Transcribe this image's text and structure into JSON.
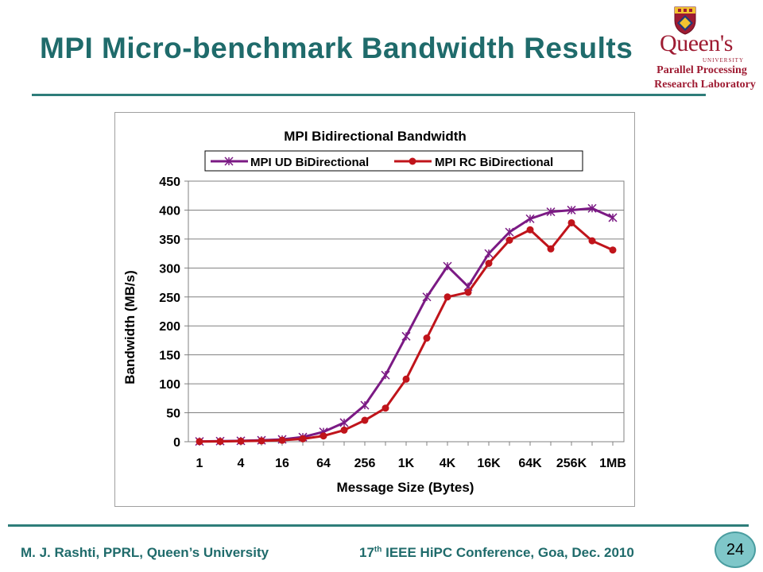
{
  "slide": {
    "title": "MPI Micro-benchmark Bandwidth Results",
    "logo": {
      "name": "Queen's",
      "sub": "UNIVERSITY",
      "line1": "Parallel Processing",
      "line2": "Research Laboratory",
      "crest_icon": "university-crest-icon"
    },
    "footer_left": "M. J. Rashti, PPRL, Queen’s University",
    "footer_right_pre": "17",
    "footer_right_sup": "th",
    "footer_right_post": " IEEE HiPC Conference, Goa, Dec. 2010",
    "page_number": "24"
  },
  "colors": {
    "title": "#1f6b6b",
    "rule": "#2e7d7a",
    "ud_series": "#7b1a84",
    "rc_series": "#c0141b",
    "badge": "#7fc7c9"
  },
  "chart_data": {
    "type": "line",
    "title": "MPI Bidirectional Bandwidth",
    "xlabel": "Message Size (Bytes)",
    "ylabel": "Bandwidth (MB/s)",
    "ylim": [
      0,
      450
    ],
    "yticks": [
      0,
      50,
      100,
      150,
      200,
      250,
      300,
      350,
      400,
      450
    ],
    "grid": true,
    "legend_position": "top",
    "x": [
      "1",
      "2",
      "4",
      "8",
      "16",
      "32",
      "64",
      "128",
      "256",
      "512",
      "1K",
      "2K",
      "4K",
      "8K",
      "16K",
      "32K",
      "64K",
      "128K",
      "256K",
      "512K",
      "1MB"
    ],
    "x_tick_labels": [
      "1",
      "4",
      "16",
      "64",
      "256",
      "1K",
      "4K",
      "16K",
      "64K",
      "256K",
      "1MB"
    ],
    "series": [
      {
        "name": "MPI UD BiDirectional",
        "marker": "star",
        "color": "#7b1a84",
        "values": [
          0.5,
          1,
          1.5,
          2.5,
          4,
          8,
          17,
          33,
          63,
          115,
          182,
          250,
          303,
          268,
          325,
          362,
          385,
          397,
          400,
          403,
          387
        ]
      },
      {
        "name": "MPI RC BiDirectional",
        "marker": "circle",
        "color": "#c0141b",
        "values": [
          0.3,
          0.6,
          1,
          1.5,
          2.5,
          5,
          10,
          20,
          37,
          58,
          108,
          179,
          250,
          258,
          308,
          348,
          366,
          333,
          378,
          347,
          331
        ]
      }
    ]
  }
}
